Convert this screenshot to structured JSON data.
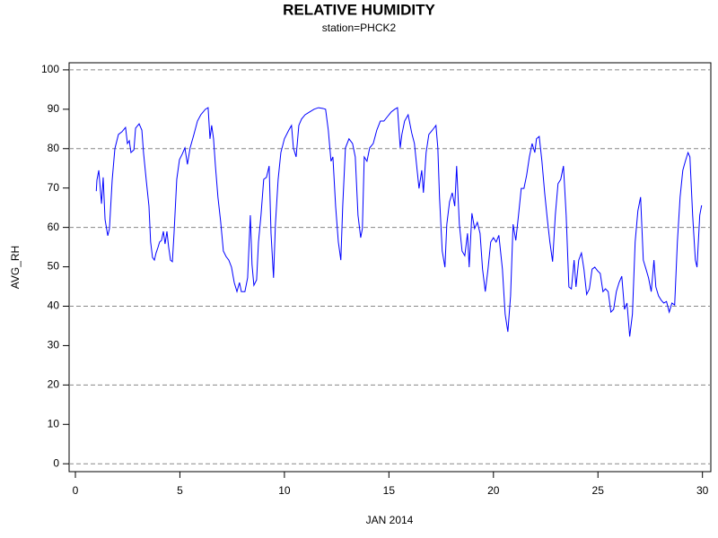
{
  "chart_data": {
    "type": "line",
    "title": "RELATIVE HUMIDITY",
    "subtitle": "station=PHCK2",
    "x_label": "JAN 2014",
    "y_label": "AVG_RH",
    "color": "#0000ff",
    "x": [
      1.0,
      1.03,
      1.12,
      1.25,
      1.33,
      1.42,
      1.55,
      1.63,
      1.76,
      1.89,
      2.06,
      2.23,
      2.4,
      2.49,
      2.58,
      2.66,
      2.8,
      2.88,
      3.05,
      3.18,
      3.26,
      3.39,
      3.52,
      3.6,
      3.69,
      3.78,
      3.86,
      3.95,
      4.03,
      4.12,
      4.21,
      4.29,
      4.38,
      4.46,
      4.55,
      4.64,
      4.72,
      4.85,
      4.98,
      5.11,
      5.24,
      5.36,
      5.49,
      5.67,
      5.84,
      6.0,
      6.22,
      6.35,
      6.44,
      6.52,
      6.61,
      6.7,
      6.82,
      6.95,
      7.08,
      7.21,
      7.34,
      7.47,
      7.6,
      7.73,
      7.85,
      7.94,
      8.11,
      8.24,
      8.37,
      8.45,
      8.54,
      8.67,
      8.76,
      8.88,
      9.01,
      9.14,
      9.27,
      9.36,
      9.48,
      9.57,
      9.7,
      9.83,
      10.0,
      10.21,
      10.34,
      10.43,
      10.56,
      10.69,
      10.82,
      10.99,
      11.2,
      11.42,
      11.63,
      11.85,
      11.97,
      12.1,
      12.23,
      12.32,
      12.45,
      12.58,
      12.7,
      12.79,
      12.92,
      13.09,
      13.26,
      13.39,
      13.52,
      13.65,
      13.73,
      13.82,
      13.95,
      14.08,
      14.25,
      14.42,
      14.59,
      14.76,
      14.94,
      15.11,
      15.28,
      15.41,
      15.54,
      15.62,
      15.75,
      15.92,
      16.09,
      16.22,
      16.35,
      16.44,
      16.57,
      16.65,
      16.78,
      16.91,
      17.08,
      17.25,
      17.34,
      17.42,
      17.55,
      17.68,
      17.77,
      17.9,
      18.03,
      18.15,
      18.24,
      18.37,
      18.5,
      18.63,
      18.76,
      18.84,
      18.97,
      19.1,
      19.23,
      19.36,
      19.48,
      19.61,
      19.74,
      19.87,
      20.0,
      20.13,
      20.26,
      20.43,
      20.56,
      20.69,
      20.82,
      20.94,
      21.07,
      21.2,
      21.33,
      21.46,
      21.59,
      21.72,
      21.85,
      21.98,
      22.06,
      22.19,
      22.32,
      22.45,
      22.58,
      22.7,
      22.83,
      22.96,
      23.09,
      23.22,
      23.35,
      23.48,
      23.61,
      23.73,
      23.86,
      23.95,
      24.08,
      24.21,
      24.33,
      24.46,
      24.59,
      24.72,
      24.85,
      24.98,
      25.11,
      25.24,
      25.36,
      25.49,
      25.62,
      25.75,
      25.88,
      26.01,
      26.14,
      26.27,
      26.39,
      26.52,
      26.65,
      26.78,
      26.91,
      27.04,
      27.17,
      27.3,
      27.42,
      27.55,
      27.68,
      27.77,
      27.9,
      28.03,
      28.15,
      28.28,
      28.41,
      28.54,
      28.67,
      28.8,
      28.93,
      29.06,
      29.18,
      29.31,
      29.4,
      29.53,
      29.66,
      29.74,
      29.87,
      29.96
    ],
    "values": [
      69.2,
      72,
      74.5,
      66,
      72.7,
      62,
      57.9,
      59.7,
      72,
      80,
      83.6,
      84.3,
      85.4,
      81.3,
      82,
      79,
      79.7,
      85.2,
      86.3,
      84.7,
      79,
      72,
      65.4,
      56.3,
      52.4,
      51.7,
      53.5,
      54.9,
      56.3,
      56.7,
      59,
      55.8,
      59,
      55.1,
      51.7,
      51.3,
      58.5,
      72.2,
      77.2,
      78.6,
      80.2,
      76,
      80.2,
      83.6,
      87,
      88.6,
      90,
      90.4,
      82.5,
      85.9,
      82.5,
      75.6,
      67.7,
      61.5,
      54,
      52.6,
      51.7,
      49.9,
      46,
      43.7,
      46,
      43.7,
      43.7,
      47.2,
      63.1,
      50.6,
      45.3,
      46.7,
      56.3,
      63.1,
      72.2,
      72.7,
      75.6,
      58.5,
      47.2,
      60.8,
      72.2,
      79,
      82.5,
      84.7,
      85.9,
      80.2,
      77.9,
      85.9,
      87.5,
      88.6,
      89.3,
      90,
      90.4,
      90.2,
      90,
      84.7,
      76.8,
      77.9,
      65.4,
      56.3,
      51.7,
      65.4,
      80.2,
      82.5,
      81.3,
      77.9,
      63.1,
      57.4,
      59.7,
      77.9,
      76.8,
      80.2,
      81.3,
      84.7,
      87,
      87,
      88.2,
      89.3,
      90,
      90.4,
      80.2,
      83.6,
      87,
      88.6,
      84,
      81.3,
      74.5,
      69.9,
      74.5,
      68.8,
      79,
      83.6,
      84.7,
      85.9,
      80.2,
      67.7,
      54,
      49.9,
      60.8,
      66.5,
      68.8,
      65.4,
      75.6,
      60.8,
      54,
      52.8,
      58.5,
      49.9,
      63.6,
      59.7,
      61.3,
      58.5,
      49.4,
      43.7,
      49.4,
      56.3,
      57.4,
      56.3,
      58,
      49.4,
      38,
      33.5,
      42.6,
      60.8,
      56.7,
      63.1,
      69.9,
      69.9,
      73.3,
      77.9,
      81.3,
      79,
      82.5,
      83.1,
      76.8,
      68.8,
      62,
      56.3,
      51.3,
      63.1,
      71.1,
      72.2,
      75.6,
      63.1,
      44.9,
      44.4,
      51.7,
      44.9,
      51.7,
      53.5,
      49.4,
      43,
      44.4,
      49.4,
      49.9,
      49,
      48.3,
      43.7,
      44.4,
      43.7,
      38.5,
      39.2,
      43.7,
      46,
      47.6,
      39.2,
      40.8,
      32.3,
      38,
      56.3,
      64.2,
      67.7,
      51.7,
      49.4,
      47.2,
      43.7,
      51.7,
      44.9,
      42.6,
      41.5,
      40.8,
      41.2,
      38.5,
      40.8,
      40.3,
      56.3,
      67.7,
      74.5,
      76.8,
      79,
      77.9,
      63.1,
      51.7,
      49.9,
      63.1,
      65.6
    ],
    "xlim": [
      -0.3,
      30.4
    ],
    "xticks": [
      0,
      5,
      10,
      15,
      20,
      25,
      30
    ],
    "ylim": [
      -2,
      101.8
    ],
    "yticks": [
      0,
      10,
      20,
      30,
      40,
      50,
      60,
      70,
      80,
      90,
      100
    ],
    "ygrid": [
      0,
      20,
      40,
      60,
      80,
      100
    ],
    "grid": true
  }
}
